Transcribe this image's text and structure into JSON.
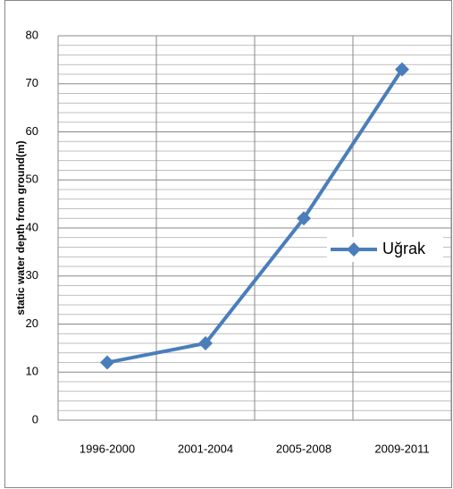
{
  "chart_data": {
    "type": "line",
    "y_label": "static water depth from ground(m)",
    "categories": [
      "1996-2000",
      "2001-2004",
      "2005-2008",
      "2009-2011"
    ],
    "series": [
      {
        "name": "Uğrak",
        "color": "#4a7ebb",
        "values": [
          12,
          16,
          42,
          73
        ]
      }
    ],
    "ylim": [
      0,
      80
    ],
    "yticks": [
      0,
      10,
      20,
      30,
      40,
      50,
      60,
      70,
      80
    ],
    "grid": true,
    "legend": "right"
  }
}
